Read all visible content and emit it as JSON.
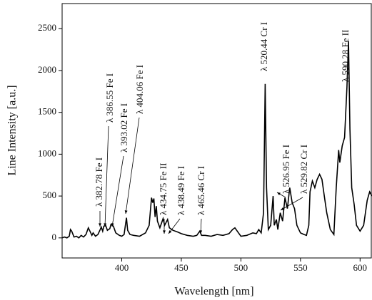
{
  "chart_data": {
    "type": "line",
    "xlabel": "Wavelength [nm]",
    "ylabel": "Line Intensity [a.u.]",
    "x": [
      350,
      352,
      354,
      356,
      357,
      358,
      360,
      362,
      364,
      366,
      368,
      370,
      372,
      374,
      375,
      376,
      378,
      380,
      382,
      382.8,
      384,
      385,
      386.5,
      388,
      390,
      391,
      393,
      395,
      398,
      400,
      402,
      404,
      405,
      407,
      410,
      415,
      420,
      423,
      425,
      426,
      427,
      428,
      429,
      430,
      432,
      434.7,
      436,
      438.5,
      440,
      443,
      447,
      450,
      455,
      460,
      463,
      465.5,
      467,
      470,
      475,
      480,
      485,
      490,
      493,
      495,
      498,
      500,
      505,
      510,
      513,
      515,
      517,
      519,
      520.4,
      521.5,
      523,
      525,
      527,
      528,
      529.8,
      531,
      533,
      535,
      537,
      539,
      541,
      543,
      545,
      547,
      550,
      553,
      555,
      557,
      558,
      560,
      562,
      564,
      566,
      568,
      570,
      572,
      575,
      578,
      580,
      582,
      583,
      585,
      587,
      589,
      590.3,
      591.5,
      593,
      595,
      597,
      600,
      603,
      606,
      608,
      610
    ],
    "values": [
      0,
      10,
      0,
      20,
      100,
      80,
      10,
      20,
      0,
      30,
      10,
      40,
      120,
      60,
      30,
      60,
      20,
      40,
      100,
      130,
      80,
      140,
      150,
      90,
      110,
      160,
      140,
      60,
      30,
      20,
      40,
      240,
      90,
      40,
      30,
      20,
      60,
      150,
      480,
      420,
      470,
      250,
      380,
      200,
      120,
      230,
      150,
      220,
      120,
      90,
      70,
      50,
      30,
      20,
      30,
      80,
      30,
      30,
      20,
      40,
      30,
      50,
      100,
      120,
      60,
      20,
      30,
      60,
      50,
      100,
      60,
      300,
      1840,
      600,
      100,
      150,
      500,
      150,
      220,
      100,
      300,
      200,
      480,
      350,
      600,
      420,
      350,
      150,
      60,
      40,
      30,
      150,
      550,
      680,
      600,
      700,
      760,
      700,
      500,
      300,
      100,
      40,
      600,
      1050,
      900,
      1100,
      1200,
      1800,
      2350,
      1300,
      600,
      400,
      150,
      80,
      150,
      450,
      550,
      500
    ],
    "color": "#000000",
    "xlim": [
      350,
      610
    ],
    "xticks": [
      400,
      450,
      500,
      550,
      600
    ],
    "ylim": [
      -240,
      2800
    ],
    "yticks": [
      0,
      500,
      1000,
      1500,
      2000,
      2500
    ],
    "annotations": [
      "λ 382.78 Fe I",
      "λ 386.55 Fe I",
      "λ 393.02 Fe I",
      "λ 404.06 Fe I",
      "λ 434.75 Fe II",
      "λ 438.49 Fe I",
      "λ 465.46 Cr I",
      "λ 520.44 Cr I",
      "λ 526.95 Fe I",
      "λ 529.82 Cr I",
      "λ 590.28 Fe II"
    ]
  }
}
